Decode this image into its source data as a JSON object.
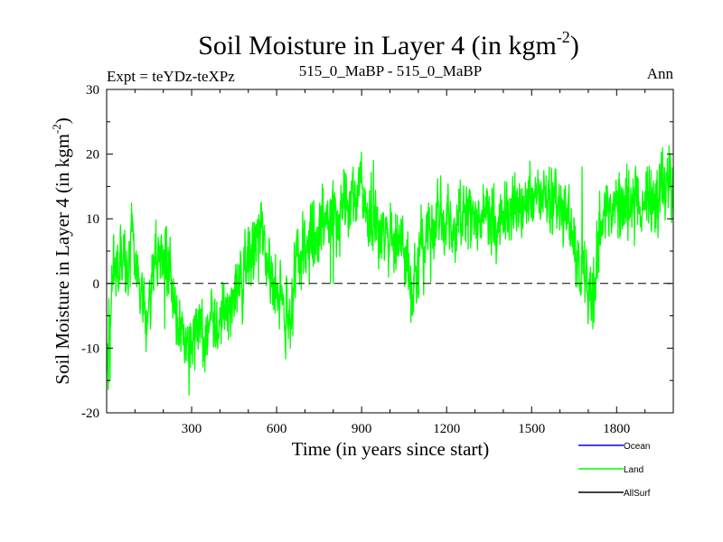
{
  "chart_data": {
    "type": "line",
    "title": "Soil Moisture in Layer 4 (in kgm",
    "title_sup": "-2",
    "title_close": ")",
    "left_label": "Expt = teYDz-teXPz",
    "center_label": "515_0_MaBP - 515_0_MaBP",
    "right_label": "Ann",
    "xlabel": "Time (in years since start)",
    "ylabel": "Soil Moisture in Layer 4 (in kgm",
    "ylabel_sup": "-2",
    "ylabel_close": ")",
    "xlim": [
      0,
      2000
    ],
    "ylim": [
      -20,
      30
    ],
    "xticks": [
      300,
      600,
      900,
      1200,
      1500,
      1800
    ],
    "yticks": [
      -20,
      -10,
      0,
      10,
      20,
      30
    ],
    "reference_line": 0,
    "series": [
      {
        "name": "Ocean",
        "color": "#0000ff",
        "values": []
      },
      {
        "name": "Land",
        "color": "#00ff00",
        "noise": 2.6,
        "anchors": [
          [
            0,
            -16
          ],
          [
            10,
            -6
          ],
          [
            25,
            2
          ],
          [
            45,
            4
          ],
          [
            70,
            3
          ],
          [
            90,
            6
          ],
          [
            110,
            0
          ],
          [
            130,
            -3
          ],
          [
            150,
            -4
          ],
          [
            170,
            2
          ],
          [
            190,
            5
          ],
          [
            210,
            3
          ],
          [
            230,
            0
          ],
          [
            250,
            -5
          ],
          [
            270,
            -8
          ],
          [
            290,
            -10
          ],
          [
            310,
            -8
          ],
          [
            330,
            -7
          ],
          [
            350,
            -9
          ],
          [
            370,
            -6
          ],
          [
            390,
            -6
          ],
          [
            420,
            -4
          ],
          [
            450,
            -2
          ],
          [
            480,
            1
          ],
          [
            510,
            5
          ],
          [
            530,
            7
          ],
          [
            550,
            8
          ],
          [
            570,
            3
          ],
          [
            590,
            -1
          ],
          [
            610,
            -3
          ],
          [
            630,
            -5
          ],
          [
            650,
            -4
          ],
          [
            670,
            2
          ],
          [
            690,
            5
          ],
          [
            720,
            7
          ],
          [
            750,
            9
          ],
          [
            780,
            10
          ],
          [
            800,
            12
          ],
          [
            830,
            11
          ],
          [
            860,
            13
          ],
          [
            880,
            14
          ],
          [
            900,
            14
          ],
          [
            920,
            11
          ],
          [
            950,
            10
          ],
          [
            980,
            8
          ],
          [
            1010,
            7
          ],
          [
            1040,
            6
          ],
          [
            1060,
            3
          ],
          [
            1080,
            -1
          ],
          [
            1095,
            1
          ],
          [
            1110,
            6
          ],
          [
            1140,
            8
          ],
          [
            1170,
            10
          ],
          [
            1200,
            9
          ],
          [
            1230,
            9
          ],
          [
            1260,
            12
          ],
          [
            1290,
            10
          ],
          [
            1320,
            11
          ],
          [
            1350,
            12
          ],
          [
            1380,
            9
          ],
          [
            1410,
            10
          ],
          [
            1440,
            12
          ],
          [
            1470,
            11
          ],
          [
            1500,
            13
          ],
          [
            1530,
            12
          ],
          [
            1560,
            13
          ],
          [
            1590,
            11
          ],
          [
            1620,
            12
          ],
          [
            1640,
            9
          ],
          [
            1660,
            6
          ],
          [
            1680,
            3
          ],
          [
            1700,
            -1
          ],
          [
            1720,
            0
          ],
          [
            1740,
            7
          ],
          [
            1770,
            12
          ],
          [
            1800,
            13
          ],
          [
            1830,
            12
          ],
          [
            1860,
            13
          ],
          [
            1890,
            12
          ],
          [
            1920,
            13
          ],
          [
            1950,
            15
          ],
          [
            1975,
            16
          ],
          [
            2000,
            14
          ]
        ],
        "spikes": [
          [
            12,
            -15
          ],
          [
            288,
            -12
          ],
          [
            295,
            -13
          ],
          [
            342,
            -12
          ],
          [
            355,
            -11
          ],
          [
            648,
            -10
          ],
          [
            652,
            -7
          ],
          [
            790,
            0
          ],
          [
            800,
            0
          ],
          [
            1074,
            -6
          ],
          [
            1078,
            -5
          ],
          [
            1716,
            -7
          ],
          [
            1720,
            -6
          ],
          [
            610,
            -7
          ],
          [
            870,
            18
          ],
          [
            942,
            19
          ],
          [
            1562,
            18
          ],
          [
            1678,
            18
          ],
          [
            1908,
            18
          ],
          [
            1962,
            21
          ],
          [
            1990,
            20
          ],
          [
            128,
            -6
          ],
          [
            205,
            -7
          ],
          [
            1248,
            16
          ],
          [
            1438,
            15
          ],
          [
            1495,
            16
          ]
        ]
      },
      {
        "name": "AllSurf",
        "color": "#000000",
        "values": []
      }
    ]
  }
}
